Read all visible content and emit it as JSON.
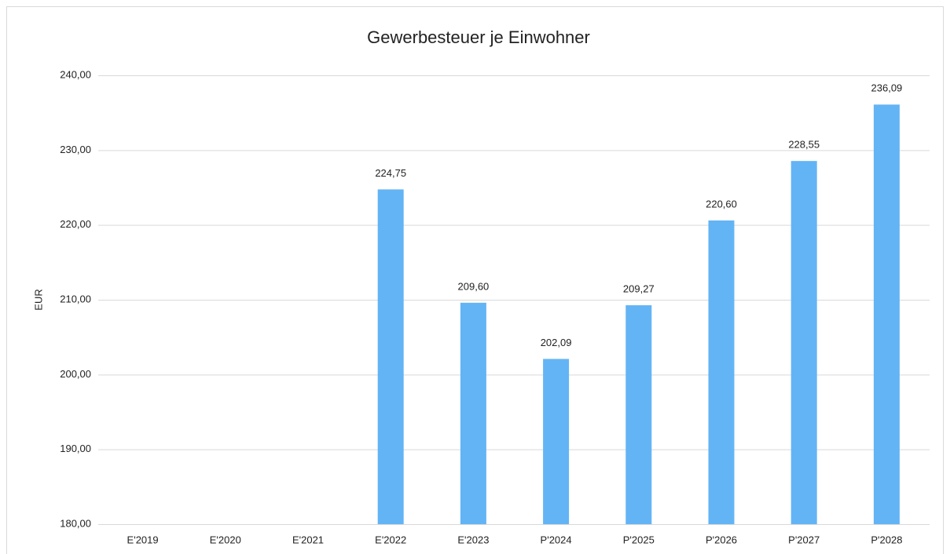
{
  "chart_data": {
    "type": "bar",
    "title": "Gewerbesteuer je Einwohner",
    "y_label": "EUR",
    "categories": [
      "E'2019",
      "E'2020",
      "E'2021",
      "E'2022",
      "E'2023",
      "P'2024",
      "P'2025",
      "P'2026",
      "P'2027",
      "P'2028"
    ],
    "values": [
      null,
      null,
      null,
      224.75,
      209.6,
      202.09,
      209.27,
      220.6,
      228.55,
      236.09
    ],
    "value_labels": [
      null,
      null,
      null,
      "224,75",
      "209,60",
      "202,09",
      "209,27",
      "220,60",
      "228,55",
      "236,09"
    ],
    "color": "#63b4f5",
    "ylim": [
      180,
      240
    ],
    "yticks": [
      {
        "value": 180,
        "label": "180,00"
      },
      {
        "value": 190,
        "label": "190,00"
      },
      {
        "value": 200,
        "label": "200,00"
      },
      {
        "value": 210,
        "label": "210,00"
      },
      {
        "value": 220,
        "label": "220,00"
      },
      {
        "value": 230,
        "label": "230,00"
      },
      {
        "value": 240,
        "label": "240,00"
      }
    ],
    "grid": true
  }
}
